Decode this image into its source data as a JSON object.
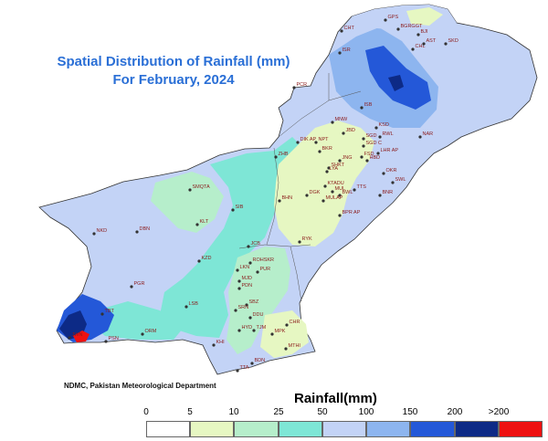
{
  "title": {
    "line1": "Spatial Distribution of Rainfall (mm)",
    "line2": "For February, 2024"
  },
  "credit": "NDMC, Pakistan Meteorological Department",
  "legend": {
    "title": "Rainfall(mm)",
    "ticks": [
      "0",
      "5",
      "10",
      "25",
      "50",
      "100",
      "150",
      "200",
      ">200"
    ],
    "classes": [
      {
        "range": "0-5",
        "color": "#ffffff"
      },
      {
        "range": "5-10",
        "color": "#e6f7c2"
      },
      {
        "range": "10-25",
        "color": "#b6eecb"
      },
      {
        "range": "25-50",
        "color": "#7ee6d6"
      },
      {
        "range": "50-100",
        "color": "#c3d3f6"
      },
      {
        "range": "100-150",
        "color": "#8db5ef"
      },
      {
        "range": "150-200",
        "color": "#2458d8"
      },
      {
        "range": "200+",
        "color": "#0d2a86"
      },
      {
        "range": ">200",
        "color": "#ee1111"
      }
    ]
  },
  "stations": [
    {
      "name": "GPS"
    },
    {
      "name": "BGRGGT"
    },
    {
      "name": "BJI"
    },
    {
      "name": "CHT"
    },
    {
      "name": "CHL"
    },
    {
      "name": "AST"
    },
    {
      "name": "SKD"
    },
    {
      "name": "ISR"
    },
    {
      "name": "PCR"
    },
    {
      "name": "ISB"
    },
    {
      "name": "MNW"
    },
    {
      "name": "JBD"
    },
    {
      "name": "DIK AP"
    },
    {
      "name": "NPT"
    },
    {
      "name": "SGD"
    },
    {
      "name": "BKR"
    },
    {
      "name": "SGD C"
    },
    {
      "name": "KSD"
    },
    {
      "name": "RWL"
    },
    {
      "name": "ZHB"
    },
    {
      "name": "JNG"
    },
    {
      "name": "SHKT"
    },
    {
      "name": "FSD"
    },
    {
      "name": "LHR AP"
    },
    {
      "name": "LYA"
    },
    {
      "name": "KTADU"
    },
    {
      "name": "MUL"
    },
    {
      "name": "OKR"
    },
    {
      "name": "SWL"
    },
    {
      "name": "BWL"
    },
    {
      "name": "TTS"
    },
    {
      "name": "DGK"
    },
    {
      "name": "MULAP"
    },
    {
      "name": "BNR"
    },
    {
      "name": "BHN"
    },
    {
      "name": "SMQTA"
    },
    {
      "name": "SIB"
    },
    {
      "name": "BPR AP"
    },
    {
      "name": "KLT"
    },
    {
      "name": "DBN"
    },
    {
      "name": "NKD"
    },
    {
      "name": "RYK"
    },
    {
      "name": "JCB"
    },
    {
      "name": "KZD"
    },
    {
      "name": "ROHSKR"
    },
    {
      "name": "LKN"
    },
    {
      "name": "PUR"
    },
    {
      "name": "MJD"
    },
    {
      "name": "PDN"
    },
    {
      "name": "PGR"
    },
    {
      "name": "LSB"
    },
    {
      "name": "SBZ"
    },
    {
      "name": "SRN"
    },
    {
      "name": "DDU"
    },
    {
      "name": "TBT"
    },
    {
      "name": "HYD"
    },
    {
      "name": "TJM"
    },
    {
      "name": "CHR"
    },
    {
      "name": "MPK"
    },
    {
      "name": "ORM"
    },
    {
      "name": "KHI"
    },
    {
      "name": "MTHI"
    },
    {
      "name": "TTA"
    },
    {
      "name": "BDN"
    },
    {
      "name": "JWN"
    },
    {
      "name": "PSN"
    },
    {
      "name": "HBD"
    },
    {
      "name": "NAR"
    }
  ]
}
